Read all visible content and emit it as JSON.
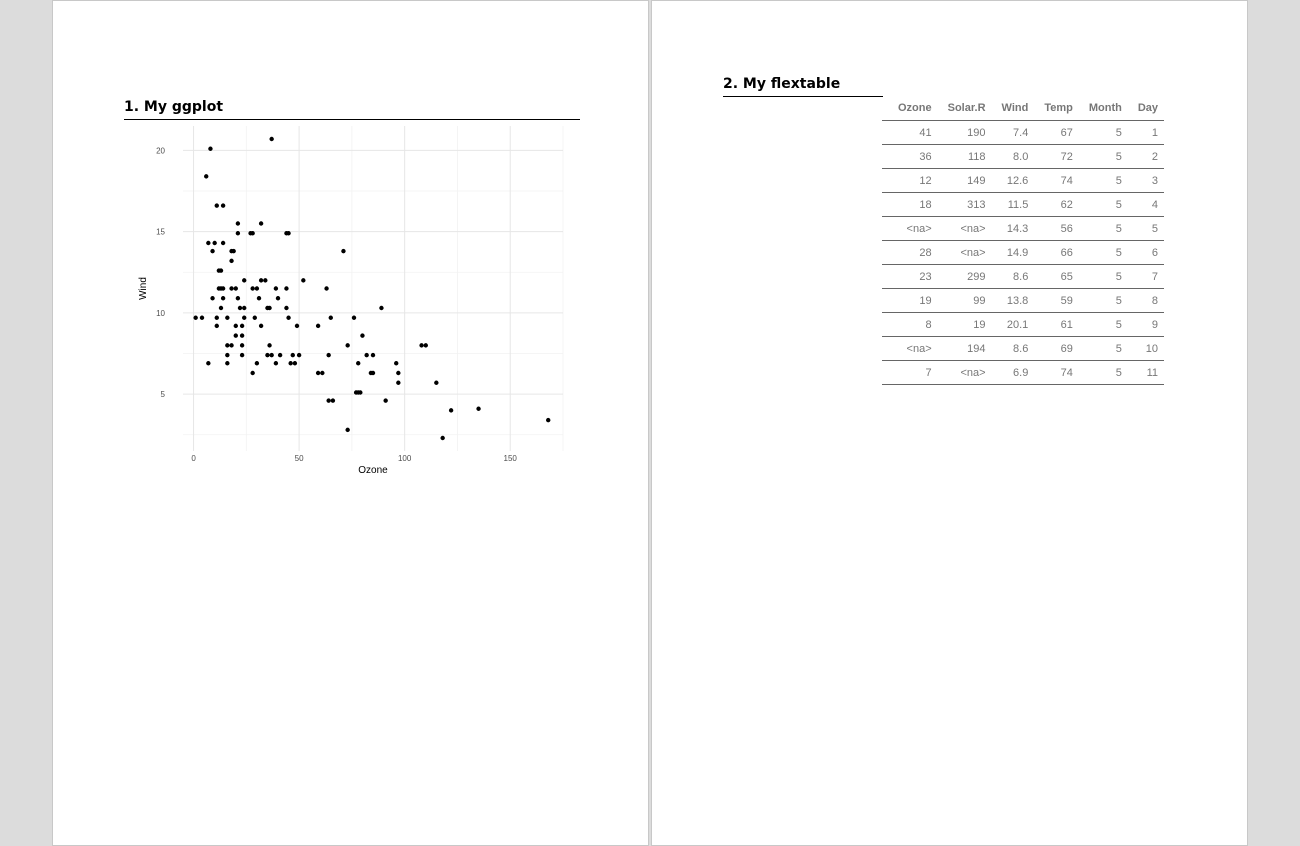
{
  "page1": {
    "heading": "1.  My ggplot"
  },
  "chart_data": {
    "type": "scatter",
    "title": "",
    "xlabel": "Ozone",
    "ylabel": "Wind",
    "xlim": [
      -5,
      175
    ],
    "ylim": [
      1.5,
      21.5
    ],
    "x_ticks": [
      0,
      50,
      100,
      150
    ],
    "y_ticks": [
      5,
      10,
      15,
      20
    ],
    "grid": true,
    "points": [
      [
        1,
        9.7
      ],
      [
        4,
        9.7
      ],
      [
        6,
        18.4
      ],
      [
        7,
        6.9
      ],
      [
        7,
        14.3
      ],
      [
        8,
        20.1
      ],
      [
        9,
        13.8
      ],
      [
        9,
        10.9
      ],
      [
        10,
        14.3
      ],
      [
        11,
        16.6
      ],
      [
        11,
        9.2
      ],
      [
        11,
        9.7
      ],
      [
        12,
        12.6
      ],
      [
        12,
        11.5
      ],
      [
        13,
        11.5
      ],
      [
        13,
        12.6
      ],
      [
        13,
        10.3
      ],
      [
        14,
        16.6
      ],
      [
        14,
        14.3
      ],
      [
        14,
        11.5
      ],
      [
        14,
        10.9
      ],
      [
        16,
        9.7
      ],
      [
        16,
        6.9
      ],
      [
        16,
        7.4
      ],
      [
        16,
        8.0
      ],
      [
        18,
        8.0
      ],
      [
        18,
        11.5
      ],
      [
        18,
        13.2
      ],
      [
        18,
        13.8
      ],
      [
        19,
        13.8
      ],
      [
        20,
        11.5
      ],
      [
        20,
        9.2
      ],
      [
        20,
        8.6
      ],
      [
        21,
        10.9
      ],
      [
        21,
        15.5
      ],
      [
        21,
        14.9
      ],
      [
        22,
        10.3
      ],
      [
        23,
        9.2
      ],
      [
        23,
        8.6
      ],
      [
        23,
        8.0
      ],
      [
        23,
        7.4
      ],
      [
        24,
        12.0
      ],
      [
        24,
        9.7
      ],
      [
        24,
        10.3
      ],
      [
        27,
        14.9
      ],
      [
        28,
        14.9
      ],
      [
        28,
        11.5
      ],
      [
        28,
        6.3
      ],
      [
        29,
        9.7
      ],
      [
        30,
        6.9
      ],
      [
        30,
        11.5
      ],
      [
        31,
        10.9
      ],
      [
        32,
        15.5
      ],
      [
        32,
        12.0
      ],
      [
        32,
        9.2
      ],
      [
        34,
        12.0
      ],
      [
        35,
        10.3
      ],
      [
        35,
        7.4
      ],
      [
        36,
        10.3
      ],
      [
        36,
        8.0
      ],
      [
        37,
        20.7
      ],
      [
        37,
        7.4
      ],
      [
        39,
        11.5
      ],
      [
        39,
        6.9
      ],
      [
        40,
        10.9
      ],
      [
        41,
        7.4
      ],
      [
        44,
        10.3
      ],
      [
        44,
        14.9
      ],
      [
        44,
        11.5
      ],
      [
        45,
        14.9
      ],
      [
        45,
        9.7
      ],
      [
        46,
        6.9
      ],
      [
        47,
        7.4
      ],
      [
        48,
        6.9
      ],
      [
        49,
        9.2
      ],
      [
        50,
        7.4
      ],
      [
        52,
        12.0
      ],
      [
        59,
        9.2
      ],
      [
        59,
        6.3
      ],
      [
        61,
        6.3
      ],
      [
        63,
        11.5
      ],
      [
        64,
        7.4
      ],
      [
        64,
        4.6
      ],
      [
        65,
        9.7
      ],
      [
        66,
        4.6
      ],
      [
        71,
        13.8
      ],
      [
        73,
        8.0
      ],
      [
        73,
        2.8
      ],
      [
        76,
        9.7
      ],
      [
        77,
        5.1
      ],
      [
        78,
        6.9
      ],
      [
        78,
        5.1
      ],
      [
        79,
        5.1
      ],
      [
        80,
        8.6
      ],
      [
        82,
        7.4
      ],
      [
        84,
        6.3
      ],
      [
        85,
        6.3
      ],
      [
        85,
        7.4
      ],
      [
        89,
        10.3
      ],
      [
        91,
        4.6
      ],
      [
        96,
        6.9
      ],
      [
        97,
        6.3
      ],
      [
        97,
        5.7
      ],
      [
        108,
        8.0
      ],
      [
        110,
        8.0
      ],
      [
        115,
        5.7
      ],
      [
        118,
        2.3
      ],
      [
        122,
        4.0
      ],
      [
        135,
        4.1
      ],
      [
        168,
        3.4
      ]
    ]
  },
  "page2": {
    "heading": "2.  My flextable",
    "table": {
      "columns": [
        "Ozone",
        "Solar.R",
        "Wind",
        "Temp",
        "Month",
        "Day"
      ],
      "rows": [
        [
          "41",
          "190",
          "7.4",
          "67",
          "5",
          "1"
        ],
        [
          "36",
          "118",
          "8.0",
          "72",
          "5",
          "2"
        ],
        [
          "12",
          "149",
          "12.6",
          "74",
          "5",
          "3"
        ],
        [
          "18",
          "313",
          "11.5",
          "62",
          "5",
          "4"
        ],
        [
          "<na>",
          "<na>",
          "14.3",
          "56",
          "5",
          "5"
        ],
        [
          "28",
          "<na>",
          "14.9",
          "66",
          "5",
          "6"
        ],
        [
          "23",
          "299",
          "8.6",
          "65",
          "5",
          "7"
        ],
        [
          "19",
          "99",
          "13.8",
          "59",
          "5",
          "8"
        ],
        [
          "8",
          "19",
          "20.1",
          "61",
          "5",
          "9"
        ],
        [
          "<na>",
          "194",
          "8.6",
          "69",
          "5",
          "10"
        ],
        [
          "7",
          "<na>",
          "6.9",
          "74",
          "5",
          "11"
        ]
      ]
    }
  }
}
